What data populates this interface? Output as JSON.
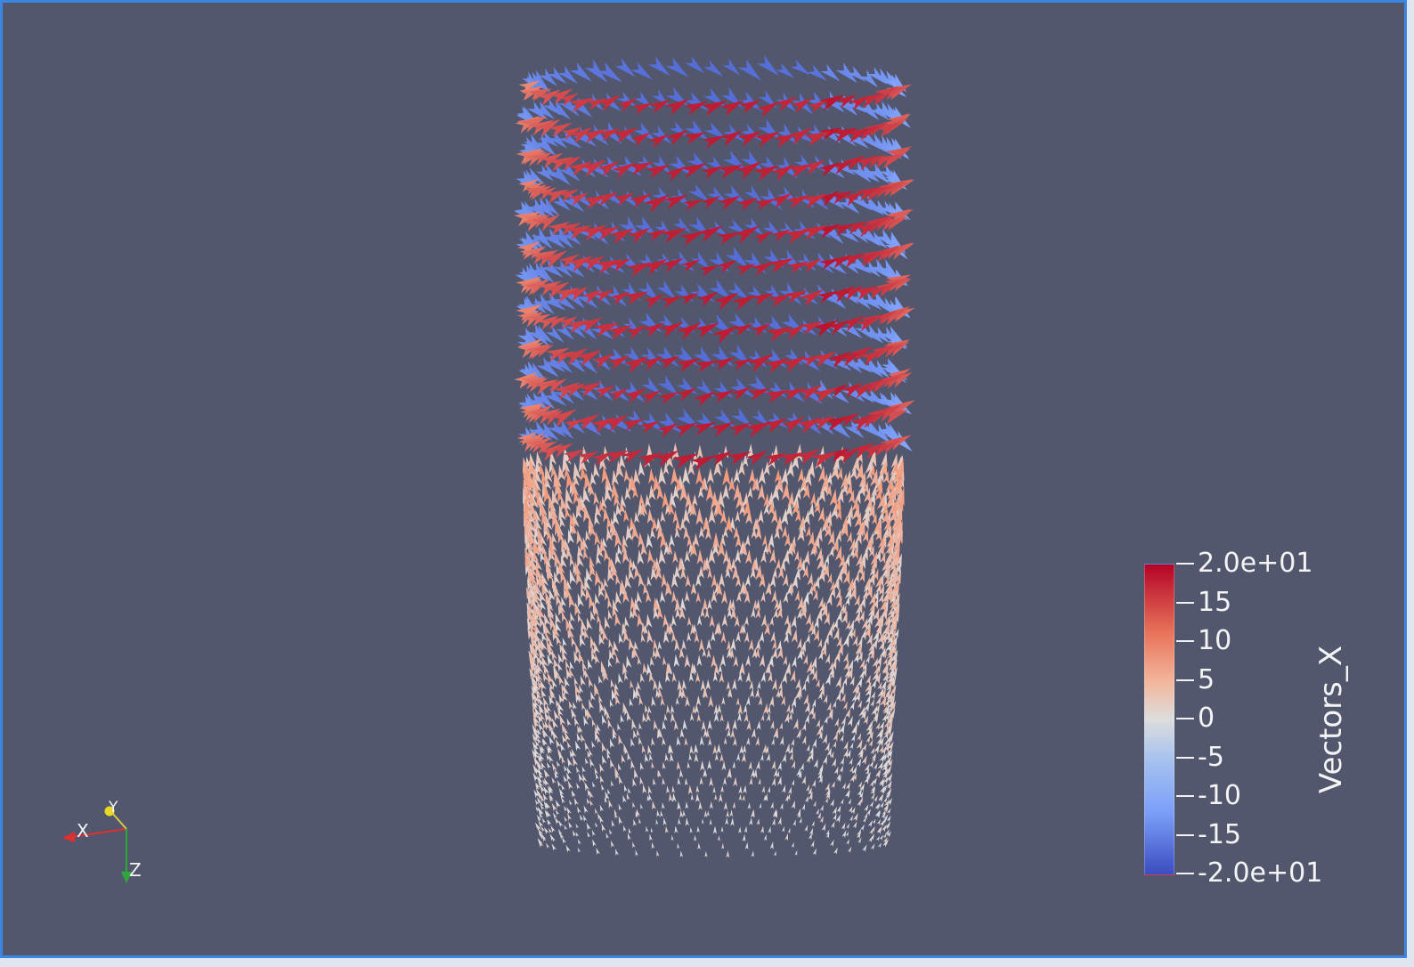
{
  "colorbar": {
    "title": "Vectors_X",
    "range": [
      -20,
      20
    ],
    "labels": [
      "2.0e+01",
      "15",
      "10",
      "5",
      "0",
      "-5",
      "-10",
      "-15",
      "-2.0e+01"
    ],
    "colors": {
      "max": "#b40426",
      "mid": "#dddddd",
      "min": "#3b4cc0"
    }
  },
  "axes": {
    "x_label": "X",
    "y_label": "Y",
    "z_label": "Z"
  },
  "colors": {
    "background": "#52576e",
    "viewport_border": "#3d86e0"
  }
}
